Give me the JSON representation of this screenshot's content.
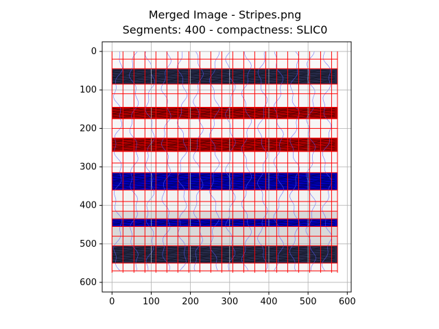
{
  "chart_data": {
    "type": "image",
    "title_line1": "Merged Image - Stripes.png",
    "title_line2": "Segments: 400 - compactness: SLIC0",
    "xlim": [
      -25,
      610
    ],
    "ylim": [
      625,
      -25
    ],
    "xticks": [
      0,
      100,
      200,
      300,
      400,
      500,
      600
    ],
    "yticks": [
      0,
      100,
      200,
      300,
      400,
      500,
      600
    ],
    "grid": true,
    "image_extent": {
      "x": [
        0,
        575
      ],
      "y": [
        0,
        575
      ]
    },
    "stripes": [
      {
        "y": [
          0,
          45
        ],
        "color": "#f8f8f8",
        "label": "white"
      },
      {
        "y": [
          45,
          85
        ],
        "color": "#262a48",
        "label": "navy"
      },
      {
        "y": [
          85,
          145
        ],
        "color": "#f5f5f7",
        "label": "white"
      },
      {
        "y": [
          145,
          175
        ],
        "color": "#a80000",
        "label": "red"
      },
      {
        "y": [
          175,
          225
        ],
        "color": "#f6f6f6",
        "label": "white"
      },
      {
        "y": [
          225,
          260
        ],
        "color": "#a80000",
        "label": "red"
      },
      {
        "y": [
          260,
          315
        ],
        "color": "#f7f7f9",
        "label": "white"
      },
      {
        "y": [
          315,
          360
        ],
        "color": "#0000b8",
        "label": "blue"
      },
      {
        "y": [
          360,
          415
        ],
        "color": "#f2f2f2",
        "label": "white"
      },
      {
        "y": [
          415,
          435
        ],
        "color": "#d9d9d9",
        "label": "light gray"
      },
      {
        "y": [
          435,
          455
        ],
        "color": "#0000b8",
        "label": "blue"
      },
      {
        "y": [
          455,
          505
        ],
        "color": "#d9d9d9",
        "label": "light gray"
      },
      {
        "y": [
          505,
          550
        ],
        "color": "#262a48",
        "label": "navy"
      },
      {
        "y": [
          550,
          575
        ],
        "color": "#f6f6f6",
        "label": "white"
      }
    ],
    "boundary_vertical_x": [
      0,
      28,
      56,
      84,
      112,
      140,
      168,
      196,
      224,
      252,
      280,
      308,
      336,
      364,
      392,
      420,
      448,
      476,
      504,
      532,
      560,
      575
    ],
    "boundary_horizontal_y": [
      20,
      45,
      85,
      110,
      145,
      175,
      200,
      225,
      260,
      290,
      315,
      360,
      390,
      415,
      435,
      455,
      480,
      505,
      550,
      570
    ],
    "colors": {
      "boundary": "#ff0000",
      "contour": "#5a5aff",
      "grid": "#b0b0b0"
    }
  }
}
